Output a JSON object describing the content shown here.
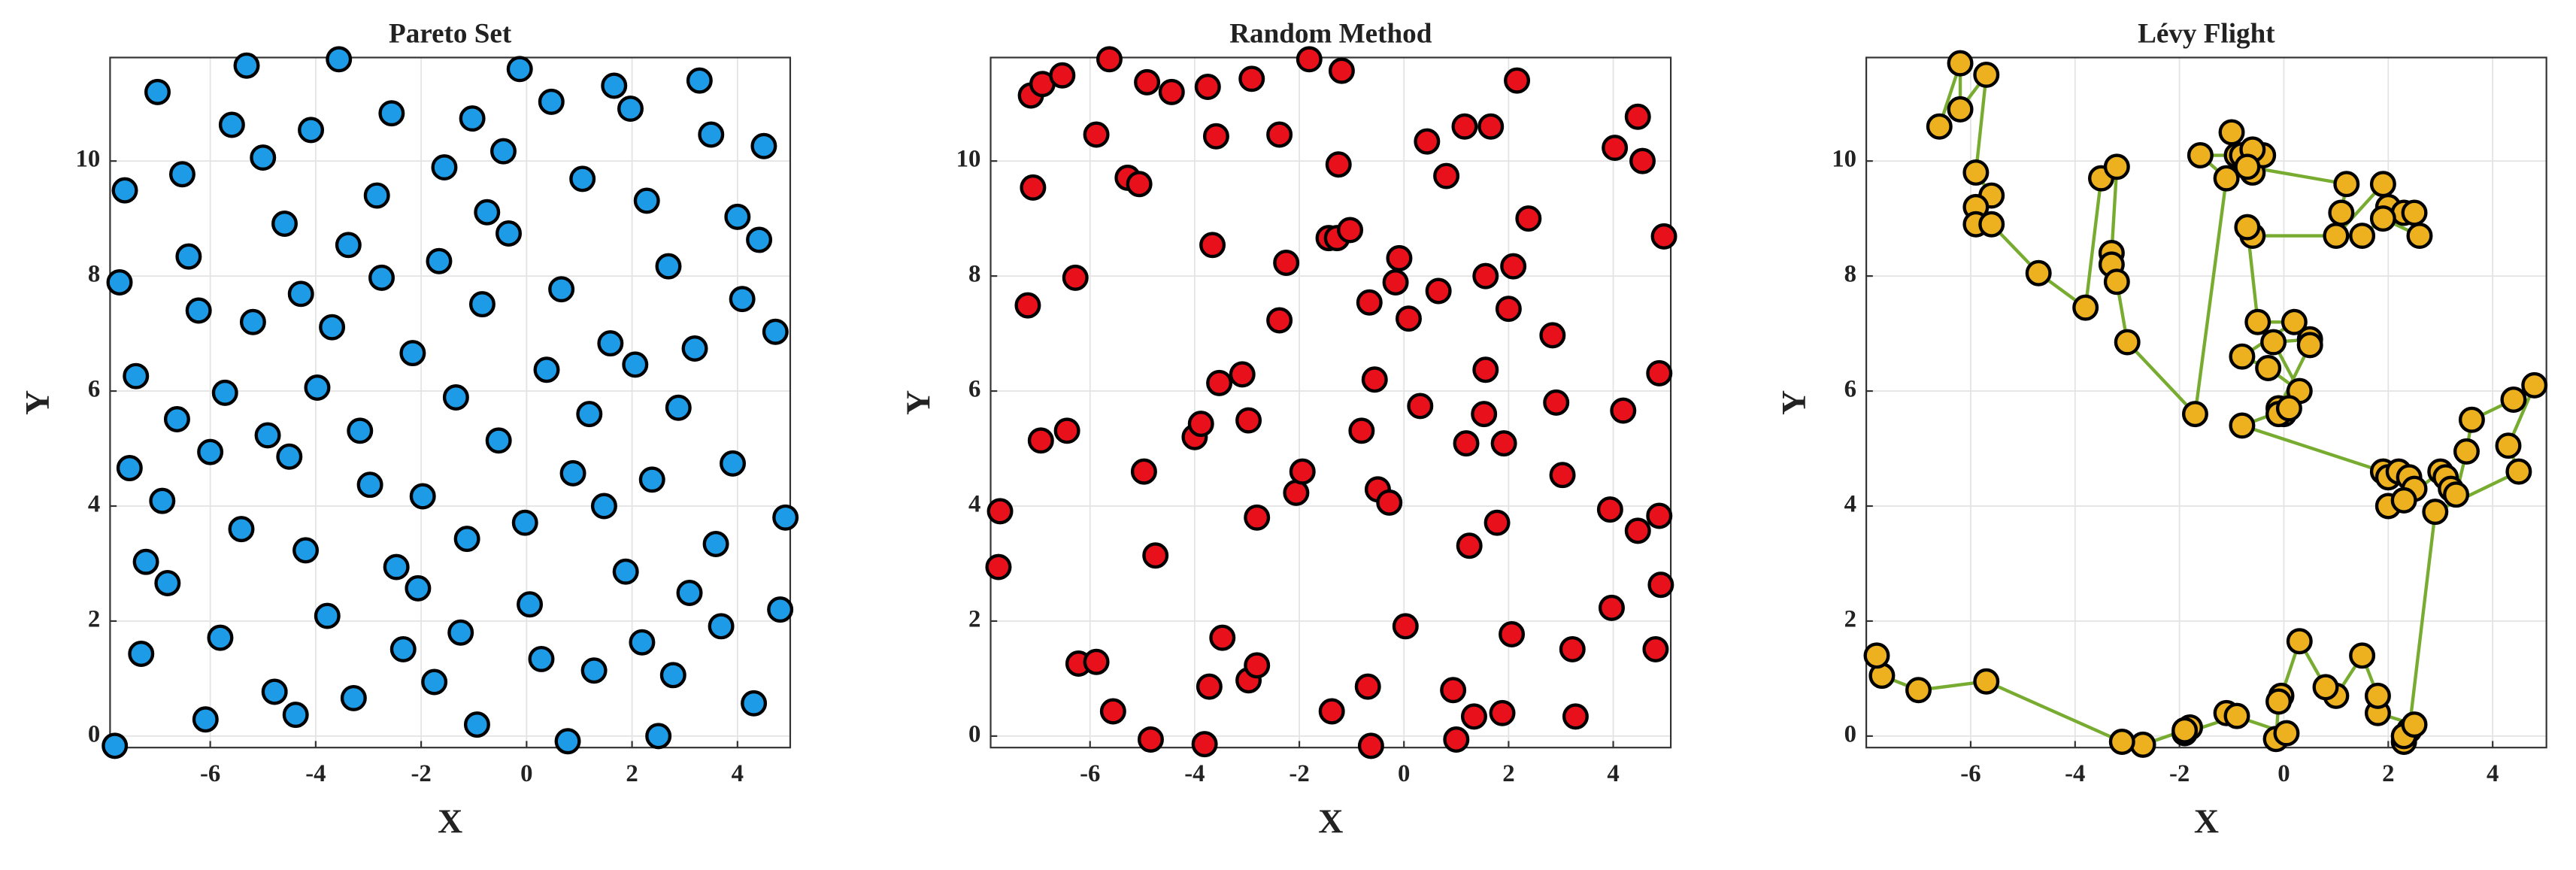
{
  "chart_data": [
    {
      "type": "scatter",
      "title": "Pareto Set",
      "x_label": "X",
      "y_label": "Y",
      "xlim": [
        -7.9,
        5.0
      ],
      "ylim": [
        -0.2,
        11.8
      ],
      "xticks": [
        -6,
        -4,
        -2,
        0,
        2,
        4
      ],
      "yticks": [
        0,
        2,
        4,
        6,
        8,
        10
      ],
      "grid": true,
      "color": "#1e9be6",
      "edge_color": "#000000",
      "x": [
        -7.81,
        -7.72,
        -7.62,
        -7.53,
        -7.41,
        -7.31,
        -7.22,
        -7.0,
        -6.91,
        -6.81,
        -6.63,
        -6.53,
        -6.41,
        -6.22,
        -6.09,
        -6.0,
        -5.81,
        -5.72,
        -5.59,
        -5.41,
        -5.31,
        -5.19,
        -5.0,
        -4.91,
        -4.78,
        -4.59,
        -4.5,
        -4.38,
        -4.28,
        -4.19,
        -4.09,
        -3.97,
        -3.78,
        -3.69,
        -3.56,
        -3.38,
        -3.28,
        -3.16,
        -2.97,
        -2.84,
        -2.75,
        -2.56,
        -2.47,
        -2.34,
        -2.16,
        -2.06,
        -1.97,
        -1.75,
        -1.66,
        -1.56,
        -1.34,
        -1.25,
        -1.13,
        -1.03,
        -0.94,
        -0.84,
        -0.75,
        -0.53,
        -0.44,
        -0.34,
        -0.13,
        -0.03,
        0.06,
        0.28,
        0.38,
        0.47,
        0.66,
        0.78,
        0.88,
        1.06,
        1.19,
        1.28,
        1.47,
        1.59,
        1.66,
        1.88,
        1.97,
        2.06,
        2.19,
        2.28,
        2.38,
        2.5,
        2.69,
        2.78,
        2.88,
        3.09,
        3.19,
        3.28,
        3.5,
        3.59,
        3.69,
        3.91,
        4.0,
        4.09,
        4.31,
        4.41,
        4.5,
        4.72,
        4.81,
        4.91
      ],
      "values": [
        -0.17,
        7.89,
        9.49,
        4.66,
        6.26,
        1.43,
        3.03,
        11.2,
        4.09,
        2.66,
        5.51,
        9.77,
        8.34,
        7.4,
        0.29,
        4.94,
        1.71,
        5.97,
        10.63,
        3.6,
        11.66,
        7.2,
        10.06,
        5.23,
        0.77,
        8.91,
        4.86,
        0.37,
        7.69,
        3.23,
        10.54,
        6.06,
        2.09,
        7.11,
        11.77,
        8.54,
        0.66,
        5.31,
        4.37,
        9.4,
        7.97,
        10.83,
        2.94,
        1.51,
        6.66,
        2.57,
        4.17,
        0.94,
        8.26,
        9.89,
        5.89,
        1.8,
        3.43,
        10.74,
        0.2,
        7.51,
        9.11,
        5.14,
        10.17,
        8.74,
        11.6,
        3.71,
        2.29,
        1.34,
        6.37,
        11.03,
        7.77,
        -0.09,
        4.57,
        9.69,
        5.6,
        1.14,
        4.0,
        6.83,
        11.31,
        2.86,
        10.91,
        6.46,
        1.63,
        9.31,
        4.46,
        0.0,
        8.17,
        1.06,
        5.71,
        2.49,
        6.74,
        11.4,
        10.46,
        3.34,
        1.91,
        4.74,
        9.03,
        7.6,
        0.57,
        8.63,
        10.26,
        7.03,
        2.2,
        3.8
      ]
    },
    {
      "type": "scatter",
      "title": "Random Method",
      "x_label": "X",
      "y_label": "Y",
      "xlim": [
        -7.9,
        5.1
      ],
      "ylim": [
        -0.2,
        11.8
      ],
      "xticks": [
        -6,
        -4,
        -2,
        0,
        2,
        4
      ],
      "yticks": [
        0,
        2,
        4,
        6,
        8,
        10
      ],
      "grid": true,
      "color": "#e8101a",
      "edge_color": "#000000",
      "x": [
        -7.75,
        -7.72,
        -7.19,
        -7.13,
        -7.09,
        -6.94,
        -6.91,
        -6.53,
        -6.44,
        -6.28,
        -6.22,
        -5.88,
        -5.88,
        -5.63,
        -5.56,
        -5.28,
        -5.06,
        -4.97,
        -4.91,
        -4.84,
        -4.75,
        -4.44,
        -4.0,
        -3.88,
        -3.81,
        -3.75,
        -3.72,
        -3.66,
        -3.59,
        -3.53,
        -3.47,
        -3.09,
        -2.97,
        -2.97,
        -2.91,
        -2.81,
        -2.81,
        -2.38,
        -2.38,
        -2.25,
        -2.06,
        -1.94,
        -1.81,
        -1.44,
        -1.38,
        -1.28,
        -1.25,
        -1.19,
        -1.03,
        -0.81,
        -0.69,
        -0.66,
        -0.63,
        -0.56,
        -0.5,
        -0.28,
        -0.16,
        -0.09,
        0.03,
        0.09,
        0.31,
        0.44,
        0.66,
        0.81,
        0.94,
        1.0,
        1.16,
        1.19,
        1.25,
        1.34,
        1.53,
        1.56,
        1.56,
        1.66,
        1.78,
        1.88,
        1.91,
        2.0,
        2.06,
        2.09,
        2.16,
        2.38,
        2.84,
        2.91,
        3.03,
        3.22,
        3.28,
        3.94,
        3.97,
        4.03,
        4.19,
        4.47,
        4.47,
        4.56,
        4.81,
        4.88,
        4.88,
        4.91,
        4.97
      ],
      "values": [
        2.94,
        3.91,
        7.49,
        11.14,
        9.54,
        5.14,
        11.34,
        11.49,
        5.31,
        7.97,
        1.26,
        1.29,
        10.46,
        11.77,
        0.43,
        9.71,
        9.6,
        4.6,
        11.37,
        -0.06,
        3.14,
        11.2,
        5.2,
        5.43,
        -0.14,
        11.29,
        0.86,
        8.54,
        10.43,
        6.14,
        1.71,
        6.29,
        5.49,
        0.97,
        11.43,
        3.8,
        1.23,
        10.46,
        7.23,
        8.23,
        4.23,
        4.6,
        11.77,
        8.66,
        0.43,
        8.66,
        9.94,
        11.57,
        8.8,
        5.31,
        0.86,
        7.54,
        -0.17,
        6.2,
        4.29,
        4.06,
        7.89,
        8.31,
        1.91,
        7.26,
        5.74,
        10.34,
        7.74,
        9.74,
        0.8,
        -0.06,
        10.6,
        5.09,
        3.31,
        0.34,
        5.6,
        8.0,
        6.37,
        10.6,
        3.71,
        0.4,
        5.09,
        7.43,
        1.77,
        8.17,
        11.4,
        9.0,
        6.97,
        5.8,
        4.54,
        1.51,
        0.34,
        3.94,
        2.23,
        10.23,
        5.66,
        10.77,
        3.57,
        10.0,
        1.51,
        3.83,
        6.31,
        2.63,
        8.69
      ]
    },
    {
      "type": "line",
      "title": "Lévy Flight",
      "x_label": "X",
      "y_label": "Y",
      "xlim": [
        -8.0,
        5.03
      ],
      "ylim": [
        -0.2,
        11.8
      ],
      "xticks": [
        -6,
        -4,
        -2,
        0,
        2,
        4
      ],
      "yticks": [
        0,
        2,
        4,
        6,
        8,
        10
      ],
      "grid": true,
      "color": "#edb120",
      "edge_color": "#000000",
      "line_color": "#77ac30",
      "x": [
        -6.6,
        -6.2,
        -6.2,
        -5.7,
        -5.9,
        -5.6,
        -5.9,
        -5.9,
        -5.6,
        -4.7,
        -3.8,
        -3.5,
        -3.2,
        -3.3,
        -3.3,
        -3.2,
        -3.0,
        -1.7,
        -1.1,
        -1.6,
        -0.9,
        -1.0,
        -0.8,
        -0.6,
        -0.4,
        -0.6,
        -0.7,
        1.2,
        1.1,
        1.0,
        1.9,
        2.0,
        2.3,
        2.5,
        2.6,
        1.9,
        1.5,
        -0.6,
        -0.7,
        -0.5,
        0.2,
        -0.8,
        -0.3,
        0.3,
        -0.2,
        0.5,
        0.5,
        -0.1,
        0.0,
        -0.1,
        0.1,
        -0.8,
        1.9,
        2.0,
        2.2,
        2.4,
        2.5,
        2.0,
        2.3,
        3.0,
        3.1,
        3.2,
        3.3,
        3.5,
        3.6,
        4.4,
        4.8,
        4.3,
        4.5,
        2.9,
        2.4,
        2.3,
        2.3,
        2.5,
        1.8,
        1.8,
        1.5,
        1.0,
        0.8,
        0.3,
        -0.05,
        -0.1,
        -0.15,
        0.05,
        -1.1,
        -0.9,
        -1.9,
        -1.8,
        -1.9,
        -2.7,
        -3.1,
        -5.7,
        -7.0,
        -7.7,
        -7.8
      ],
      "values": [
        10.6,
        11.7,
        10.9,
        11.5,
        9.8,
        9.4,
        9.2,
        8.9,
        8.9,
        8.05,
        7.45,
        9.7,
        9.9,
        8.4,
        8.2,
        7.9,
        6.85,
        5.6,
        9.7,
        10.1,
        10.1,
        10.5,
        10.1,
        9.8,
        10.1,
        10.2,
        9.9,
        9.6,
        9.1,
        8.7,
        9.6,
        9.2,
        9.1,
        9.1,
        8.7,
        9.0,
        8.7,
        8.7,
        8.85,
        7.2,
        7.2,
        6.6,
        6.4,
        6.0,
        6.85,
        6.9,
        6.8,
        5.7,
        5.6,
        5.6,
        5.7,
        5.4,
        4.6,
        4.5,
        4.6,
        4.5,
        4.3,
        4.0,
        4.1,
        4.6,
        4.5,
        4.3,
        4.2,
        4.95,
        5.5,
        5.85,
        6.1,
        5.05,
        4.6,
        3.9,
        0.1,
        -0.1,
        0.0,
        0.2,
        0.4,
        0.7,
        1.4,
        0.7,
        0.85,
        1.65,
        0.7,
        0.6,
        -0.05,
        0.05,
        0.4,
        0.35,
        0.05,
        0.15,
        0.1,
        -0.15,
        -0.1,
        0.95,
        0.8,
        1.05,
        1.4
      ]
    }
  ]
}
